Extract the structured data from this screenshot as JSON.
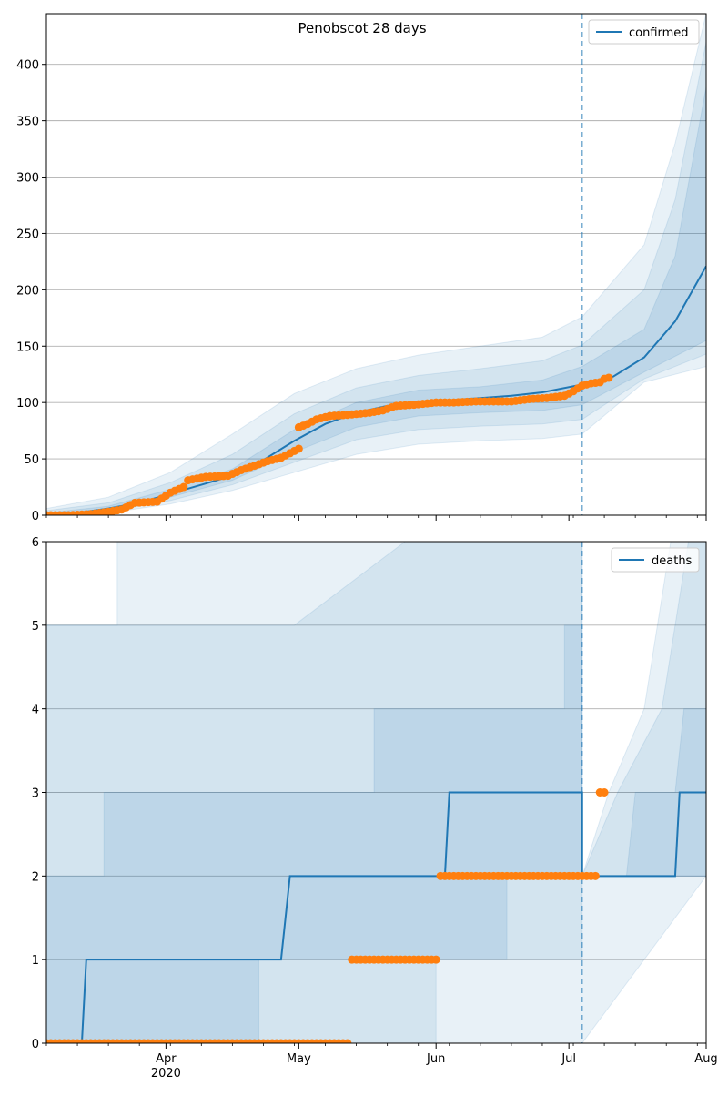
{
  "figure": {
    "title": "Penobscot 28 days"
  },
  "colors": {
    "model": "#1f77b4",
    "observed": "#ff7f0e",
    "band": "#1f77b4",
    "grid": "#b0b0b0"
  },
  "x_axis": {
    "range": [
      "2020-03-05",
      "2020-08-01"
    ],
    "major_ticks": [
      {
        "date": "2020-04-01",
        "label": "Apr",
        "sublabel": "2020"
      },
      {
        "date": "2020-05-01",
        "label": "May",
        "sublabel": ""
      },
      {
        "date": "2020-06-01",
        "label": "Jun",
        "sublabel": ""
      },
      {
        "date": "2020-07-01",
        "label": "Jul",
        "sublabel": ""
      },
      {
        "date": "2020-08-01",
        "label": "Aug",
        "sublabel": ""
      }
    ],
    "forecast_start": "2020-07-04"
  },
  "chart_data": [
    {
      "type": "line",
      "legend_position": "upper-right",
      "grid": "y",
      "ylim": [
        0,
        445
      ],
      "yticks": [
        0,
        50,
        100,
        150,
        200,
        250,
        300,
        350,
        400
      ],
      "series": [
        {
          "name": "confirmed",
          "style": "line",
          "points": [
            [
              "2020-03-05",
              1
            ],
            [
              "2020-03-12",
              2
            ],
            [
              "2020-03-19",
              6
            ],
            [
              "2020-03-26",
              11
            ],
            [
              "2020-04-02",
              19
            ],
            [
              "2020-04-09",
              27
            ],
            [
              "2020-04-16",
              35
            ],
            [
              "2020-04-23",
              49
            ],
            [
              "2020-04-30",
              66
            ],
            [
              "2020-05-07",
              81
            ],
            [
              "2020-05-14",
              91
            ],
            [
              "2020-05-21",
              97
            ],
            [
              "2020-05-28",
              100
            ],
            [
              "2020-06-04",
              102
            ],
            [
              "2020-06-11",
              104
            ],
            [
              "2020-06-18",
              106
            ],
            [
              "2020-06-25",
              109
            ],
            [
              "2020-07-04",
              116
            ],
            [
              "2020-07-11",
              123
            ],
            [
              "2020-07-18",
              140
            ],
            [
              "2020-07-25",
              172
            ],
            [
              "2020-08-01",
              221
            ]
          ]
        },
        {
          "name": "observed",
          "style": "points",
          "points": [
            [
              "2020-03-05",
              0
            ],
            [
              "2020-03-10",
              0
            ],
            [
              "2020-03-15",
              1
            ],
            [
              "2020-03-19",
              3
            ],
            [
              "2020-03-22",
              5
            ],
            [
              "2020-03-25",
              11
            ],
            [
              "2020-03-30",
              12
            ],
            [
              "2020-04-02",
              20
            ],
            [
              "2020-04-05",
              25
            ],
            [
              "2020-04-06",
              31
            ],
            [
              "2020-04-10",
              34
            ],
            [
              "2020-04-15",
              35
            ],
            [
              "2020-04-18",
              40
            ],
            [
              "2020-04-21",
              44
            ],
            [
              "2020-04-24",
              48
            ],
            [
              "2020-04-27",
              51
            ],
            [
              "2020-04-29",
              55
            ],
            [
              "2020-05-01",
              59
            ],
            [
              "2020-05-01",
              78
            ],
            [
              "2020-05-03",
              81
            ],
            [
              "2020-05-05",
              85
            ],
            [
              "2020-05-08",
              88
            ],
            [
              "2020-05-12",
              89
            ],
            [
              "2020-05-17",
              91
            ],
            [
              "2020-05-20",
              93
            ],
            [
              "2020-05-23",
              97
            ],
            [
              "2020-05-27",
              98
            ],
            [
              "2020-06-01",
              100
            ],
            [
              "2020-06-05",
              100
            ],
            [
              "2020-06-10",
              101
            ],
            [
              "2020-06-14",
              101
            ],
            [
              "2020-06-18",
              101
            ],
            [
              "2020-06-22",
              103
            ],
            [
              "2020-06-26",
              104
            ],
            [
              "2020-06-30",
              106
            ],
            [
              "2020-07-02",
              110
            ],
            [
              "2020-07-04",
              115
            ],
            [
              "2020-07-06",
              117
            ],
            [
              "2020-07-08",
              118
            ],
            [
              "2020-07-09",
              121
            ],
            [
              "2020-07-10",
              122
            ]
          ]
        }
      ],
      "bands": [
        {
          "level": "outer",
          "opacity": 0.1,
          "lower": [
            [
              "2020-03-05",
              0
            ],
            [
              "2020-03-19",
              2
            ],
            [
              "2020-04-02",
              10
            ],
            [
              "2020-04-16",
              22
            ],
            [
              "2020-04-30",
              38
            ],
            [
              "2020-05-14",
              54
            ],
            [
              "2020-05-28",
              63
            ],
            [
              "2020-06-11",
              66
            ],
            [
              "2020-06-25",
              68
            ],
            [
              "2020-07-04",
              72
            ],
            [
              "2020-07-18",
              118
            ],
            [
              "2020-08-01",
              132
            ]
          ],
          "upper": [
            [
              "2020-03-05",
              6
            ],
            [
              "2020-03-19",
              16
            ],
            [
              "2020-04-02",
              38
            ],
            [
              "2020-04-16",
              72
            ],
            [
              "2020-04-30",
              108
            ],
            [
              "2020-05-14",
              130
            ],
            [
              "2020-05-28",
              142
            ],
            [
              "2020-06-11",
              150
            ],
            [
              "2020-06-25",
              158
            ],
            [
              "2020-07-04",
              176
            ],
            [
              "2020-07-18",
              240
            ],
            [
              "2020-07-25",
              330
            ],
            [
              "2020-08-01",
              445
            ]
          ]
        },
        {
          "level": "middle",
          "opacity": 0.1,
          "lower": [
            [
              "2020-03-05",
              0
            ],
            [
              "2020-03-19",
              3
            ],
            [
              "2020-04-02",
              13
            ],
            [
              "2020-04-16",
              27
            ],
            [
              "2020-04-30",
              47
            ],
            [
              "2020-05-14",
              67
            ],
            [
              "2020-05-28",
              76
            ],
            [
              "2020-06-11",
              79
            ],
            [
              "2020-06-25",
              81
            ],
            [
              "2020-07-04",
              85
            ],
            [
              "2020-07-18",
              121
            ],
            [
              "2020-08-01",
              143
            ]
          ],
          "upper": [
            [
              "2020-03-05",
              4
            ],
            [
              "2020-03-19",
              11
            ],
            [
              "2020-04-02",
              29
            ],
            [
              "2020-04-16",
              54
            ],
            [
              "2020-04-30",
              90
            ],
            [
              "2020-05-14",
              113
            ],
            [
              "2020-05-28",
              124
            ],
            [
              "2020-06-11",
              130
            ],
            [
              "2020-06-25",
              137
            ],
            [
              "2020-07-04",
              151
            ],
            [
              "2020-07-18",
              200
            ],
            [
              "2020-07-25",
              280
            ],
            [
              "2020-08-01",
              420
            ]
          ]
        },
        {
          "level": "inner",
          "opacity": 0.12,
          "lower": [
            [
              "2020-03-05",
              0
            ],
            [
              "2020-03-19",
              4
            ],
            [
              "2020-04-02",
              16
            ],
            [
              "2020-04-16",
              31
            ],
            [
              "2020-04-30",
              56
            ],
            [
              "2020-05-14",
              78
            ],
            [
              "2020-05-28",
              88
            ],
            [
              "2020-06-11",
              91
            ],
            [
              "2020-06-25",
              93
            ],
            [
              "2020-07-04",
              98
            ],
            [
              "2020-07-18",
              127
            ],
            [
              "2020-08-01",
              155
            ]
          ],
          "upper": [
            [
              "2020-03-05",
              2
            ],
            [
              "2020-03-19",
              8
            ],
            [
              "2020-04-02",
              23
            ],
            [
              "2020-04-16",
              41
            ],
            [
              "2020-04-30",
              76
            ],
            [
              "2020-05-14",
              100
            ],
            [
              "2020-05-28",
              111
            ],
            [
              "2020-06-11",
              114
            ],
            [
              "2020-06-25",
              120
            ],
            [
              "2020-07-04",
              132
            ],
            [
              "2020-07-18",
              165
            ],
            [
              "2020-07-25",
              230
            ],
            [
              "2020-08-01",
              380
            ]
          ]
        }
      ]
    },
    {
      "type": "line",
      "legend_position": "upper-right",
      "grid": "y",
      "ylim": [
        0,
        6
      ],
      "yticks": [
        0,
        1,
        2,
        3,
        4,
        5,
        6
      ],
      "series": [
        {
          "name": "deaths",
          "style": "step",
          "points": [
            [
              "2020-03-05",
              0
            ],
            [
              "2020-03-13",
              0
            ],
            [
              "2020-03-14",
              1
            ],
            [
              "2020-04-27",
              1
            ],
            [
              "2020-04-29",
              2
            ],
            [
              "2020-06-03",
              2
            ],
            [
              "2020-06-04",
              3
            ],
            [
              "2020-07-04",
              3
            ],
            [
              "2020-07-04",
              2
            ],
            [
              "2020-07-25",
              2
            ],
            [
              "2020-07-26",
              3
            ],
            [
              "2020-08-01",
              3
            ]
          ]
        },
        {
          "name": "observed",
          "style": "points",
          "points": [
            [
              "2020-03-05",
              0
            ],
            [
              "2020-03-12",
              0
            ],
            [
              "2020-03-19",
              0
            ],
            [
              "2020-03-26",
              0
            ],
            [
              "2020-04-02",
              0
            ],
            [
              "2020-04-09",
              0
            ],
            [
              "2020-04-16",
              0
            ],
            [
              "2020-04-23",
              0
            ],
            [
              "2020-04-30",
              0
            ],
            [
              "2020-05-07",
              0
            ],
            [
              "2020-05-12",
              0
            ],
            [
              "2020-05-13",
              1
            ],
            [
              "2020-05-18",
              1
            ],
            [
              "2020-05-23",
              1
            ],
            [
              "2020-05-28",
              1
            ],
            [
              "2020-06-01",
              1
            ],
            [
              "2020-06-02",
              2
            ],
            [
              "2020-06-09",
              2
            ],
            [
              "2020-06-16",
              2
            ],
            [
              "2020-06-23",
              2
            ],
            [
              "2020-06-30",
              2
            ],
            [
              "2020-07-04",
              2
            ],
            [
              "2020-07-07",
              2
            ],
            [
              "2020-07-08",
              3
            ],
            [
              "2020-07-09",
              3
            ]
          ]
        }
      ],
      "bands": [
        {
          "level": "outer",
          "opacity": 0.1,
          "lower": [
            [
              "2020-03-05",
              0
            ],
            [
              "2020-07-04",
              0
            ],
            [
              "2020-08-01",
              2
            ]
          ],
          "upper": [
            [
              "2020-03-05",
              5
            ],
            [
              "2020-03-21",
              5
            ],
            [
              "2020-03-21",
              6
            ],
            [
              "2020-07-04",
              6
            ],
            [
              "2020-07-04",
              2
            ],
            [
              "2020-07-10",
              3
            ],
            [
              "2020-07-18",
              4
            ],
            [
              "2020-07-24",
              6
            ],
            [
              "2020-08-01",
              6
            ]
          ]
        },
        {
          "level": "middle",
          "opacity": 0.1,
          "lower": [
            [
              "2020-03-05",
              0
            ],
            [
              "2020-06-01",
              0
            ],
            [
              "2020-06-01",
              1
            ],
            [
              "2020-07-04",
              1
            ],
            [
              "2020-07-04",
              2
            ],
            [
              "2020-08-01",
              2
            ]
          ],
          "upper": [
            [
              "2020-03-05",
              5
            ],
            [
              "2020-04-30",
              5
            ],
            [
              "2020-05-25",
              6
            ],
            [
              "2020-07-04",
              6
            ],
            [
              "2020-07-04",
              2
            ],
            [
              "2020-07-12",
              3
            ],
            [
              "2020-07-22",
              4
            ],
            [
              "2020-07-28",
              6
            ],
            [
              "2020-08-01",
              6
            ]
          ]
        },
        {
          "level": "inner",
          "opacity": 0.12,
          "lower": [
            [
              "2020-03-05",
              0
            ],
            [
              "2020-04-22",
              0
            ],
            [
              "2020-04-22",
              1
            ],
            [
              "2020-06-17",
              1
            ],
            [
              "2020-06-17",
              2
            ],
            [
              "2020-07-04",
              2
            ],
            [
              "2020-08-01",
              2
            ]
          ],
          "upper": [
            [
              "2020-03-05",
              2
            ],
            [
              "2020-03-18",
              2
            ],
            [
              "2020-03-18",
              3
            ],
            [
              "2020-05-18",
              3
            ],
            [
              "2020-05-18",
              4
            ],
            [
              "2020-06-30",
              4
            ],
            [
              "2020-06-30",
              5
            ],
            [
              "2020-07-04",
              5
            ],
            [
              "2020-07-04",
              2
            ],
            [
              "2020-07-14",
              2
            ],
            [
              "2020-07-16",
              3
            ],
            [
              "2020-07-25",
              3
            ],
            [
              "2020-07-27",
              4
            ],
            [
              "2020-08-01",
              4
            ]
          ]
        }
      ]
    }
  ]
}
